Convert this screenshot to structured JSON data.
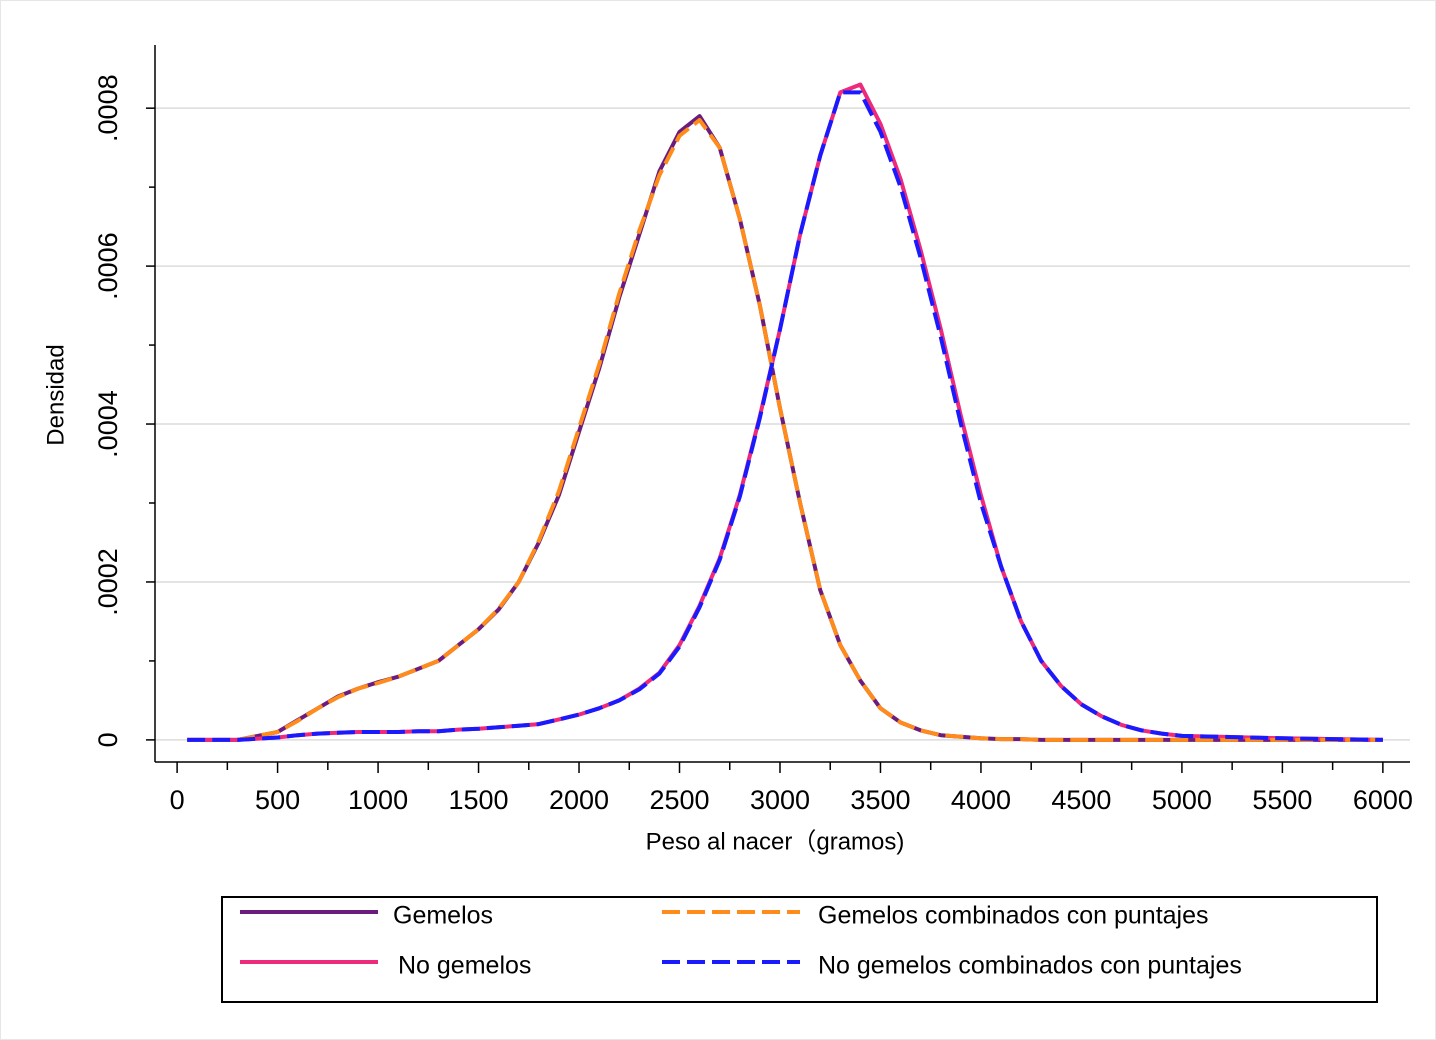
{
  "chart_data": {
    "type": "line",
    "xlabel": "Peso al nacer（gramos)",
    "ylabel": "Densidad",
    "x": [
      50,
      300,
      500,
      600,
      700,
      800,
      900,
      1000,
      1100,
      1200,
      1300,
      1400,
      1500,
      1600,
      1700,
      1800,
      1900,
      2000,
      2100,
      2200,
      2300,
      2400,
      2500,
      2600,
      2700,
      2800,
      2900,
      3000,
      3100,
      3200,
      3300,
      3400,
      3500,
      3600,
      3700,
      3800,
      3900,
      4000,
      4100,
      4200,
      4300,
      4400,
      4500,
      4600,
      4700,
      4800,
      4900,
      5000,
      5500,
      6000
    ],
    "series": [
      {
        "name": "Gemelos",
        "color": "#6b1d7d",
        "dashed": false,
        "values": [
          0,
          0,
          1e-05,
          2.5e-05,
          4e-05,
          5.5e-05,
          6.5e-05,
          7.3e-05,
          8e-05,
          9e-05,
          0.0001,
          0.00012,
          0.00014,
          0.000165,
          0.0002,
          0.00025,
          0.00031,
          0.00039,
          0.00047,
          0.00056,
          0.00064,
          0.00072,
          0.00077,
          0.00079,
          0.00075,
          0.00066,
          0.00055,
          0.00042,
          0.0003,
          0.00019,
          0.00012,
          7.5e-05,
          4e-05,
          2.2e-05,
          1.2e-05,
          6e-06,
          4e-06,
          2e-06,
          1e-06,
          1e-06,
          0,
          0,
          0,
          0,
          0,
          0,
          0,
          0,
          0,
          0
        ]
      },
      {
        "name": "No gemelos",
        "color": "#ee2a7b",
        "dashed": false,
        "values": [
          0,
          0,
          3e-06,
          6e-06,
          8e-06,
          9e-06,
          1e-05,
          1e-05,
          1e-05,
          1.1e-05,
          1.1e-05,
          1.3e-05,
          1.4e-05,
          1.6e-05,
          1.8e-05,
          2e-05,
          2.6e-05,
          3.2e-05,
          4e-05,
          5e-05,
          6.5e-05,
          8.5e-05,
          0.00012,
          0.00017,
          0.00023,
          0.00031,
          0.00041,
          0.00052,
          0.00064,
          0.00074,
          0.00082,
          0.00083,
          0.00078,
          0.00071,
          0.00062,
          0.00052,
          0.00041,
          0.00031,
          0.00022,
          0.00015,
          0.0001,
          6.8e-05,
          4.5e-05,
          3e-05,
          1.9e-05,
          1.2e-05,
          8e-06,
          5e-06,
          2e-06,
          0
        ]
      },
      {
        "name": "Gemelos combinados con puntajes",
        "color": "#ff8c1a",
        "dashed": true,
        "values": [
          0,
          0,
          1e-05,
          2.4e-05,
          4e-05,
          5.4e-05,
          6.5e-05,
          7.2e-05,
          8e-05,
          9e-05,
          0.0001,
          0.00012,
          0.00014,
          0.000166,
          0.0002,
          0.000252,
          0.000315,
          0.000395,
          0.000475,
          0.000565,
          0.000645,
          0.000715,
          0.000765,
          0.000785,
          0.00075,
          0.00066,
          0.00055,
          0.00042,
          0.0003,
          0.00019,
          0.00012,
          7.5e-05,
          4e-05,
          2.2e-05,
          1.2e-05,
          6e-06,
          4e-06,
          2e-06,
          1e-06,
          1e-06,
          0,
          0,
          0,
          0,
          0,
          0,
          0,
          0,
          0,
          0
        ]
      },
      {
        "name": "No gemelos combinados con puntajes",
        "color": "#1a1aff",
        "dashed": true,
        "values": [
          0,
          0,
          3e-06,
          6e-06,
          8e-06,
          9e-06,
          1e-05,
          1e-05,
          1e-05,
          1.1e-05,
          1.1e-05,
          1.3e-05,
          1.4e-05,
          1.6e-05,
          1.8e-05,
          2e-05,
          2.6e-05,
          3.2e-05,
          4e-05,
          5e-05,
          6.4e-05,
          8.4e-05,
          0.000118,
          0.000168,
          0.000228,
          0.000308,
          0.000408,
          0.00052,
          0.00064,
          0.00074,
          0.00082,
          0.00082,
          0.00077,
          0.0007,
          0.00061,
          0.00051,
          0.0004,
          0.0003,
          0.00022,
          0.00015,
          0.0001,
          6.8e-05,
          4.5e-05,
          3e-05,
          1.9e-05,
          1.2e-05,
          8e-06,
          5e-06,
          2e-06,
          0
        ]
      }
    ],
    "xlim": [
      -110,
      6135
    ],
    "ylim": [
      -2.8e-05,
      0.00088
    ],
    "xticks": [
      0,
      500,
      1000,
      1500,
      2000,
      2500,
      3000,
      3500,
      4000,
      4500,
      5000,
      5500,
      6000
    ],
    "xminorticks": [
      250,
      750,
      1250,
      1750,
      2250,
      2750,
      3250,
      3750,
      4250,
      4750,
      5250,
      5750
    ],
    "yticks": [
      0,
      {
        "value": 0.0002,
        "label": ".0002"
      },
      {
        "value": 0.0004,
        "label": ".0004"
      },
      {
        "value": 0.0006,
        "label": ".0006"
      },
      {
        "value": 0.0008,
        "label": ".0008"
      }
    ],
    "yminorticks": [
      0.0001,
      0.0003,
      0.0005,
      0.0007
    ],
    "grid": true,
    "legend": "bottom"
  }
}
